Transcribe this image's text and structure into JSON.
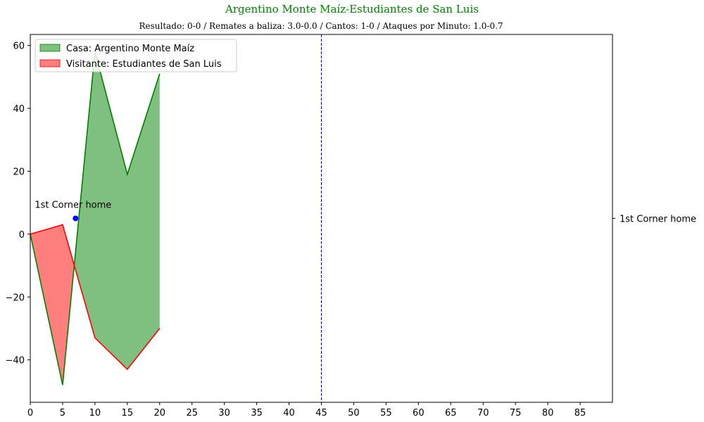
{
  "chart_data": {
    "type": "area",
    "title": "Argentino Monte Maíz-Estudiantes de San Luis",
    "subtitle": "Resultado: 0-0 / Remates a baliza: 3.0-0.0 / Cantos: 1-0 / Ataques por Minuto: 1.0-0.7",
    "xlabel": "",
    "ylabel": "",
    "xlim": [
      0,
      90
    ],
    "ylim": [
      -53.5,
      63.5
    ],
    "xticks": [
      0,
      5,
      10,
      15,
      20,
      25,
      30,
      35,
      40,
      45,
      50,
      55,
      60,
      65,
      70,
      75,
      80,
      85
    ],
    "yticks": [
      -40,
      -20,
      0,
      20,
      40,
      60
    ],
    "grid": false,
    "legend_position": "top-left",
    "x": [
      0,
      5,
      10,
      15,
      20
    ],
    "series": [
      {
        "name": "Casa: Argentino Monte Maíz",
        "values": [
          0,
          -48,
          58,
          19,
          51
        ],
        "color": "#008000",
        "fill": "#7fbf7f"
      },
      {
        "name": "Visitante: Estudiantes de San Luis",
        "values": [
          0,
          3,
          -33,
          -43,
          -30
        ],
        "color": "#ff0000",
        "fill": "#ff7f7f"
      }
    ],
    "vline": {
      "x": 45,
      "color": "#0000ff",
      "style": "dashed"
    },
    "events": [
      {
        "x": 7,
        "y": 5,
        "label": "1st Corner home",
        "color": "#0000ff"
      }
    ],
    "right_tick": {
      "y": 5,
      "label": "1st Corner home"
    },
    "title_color": "#008000"
  }
}
